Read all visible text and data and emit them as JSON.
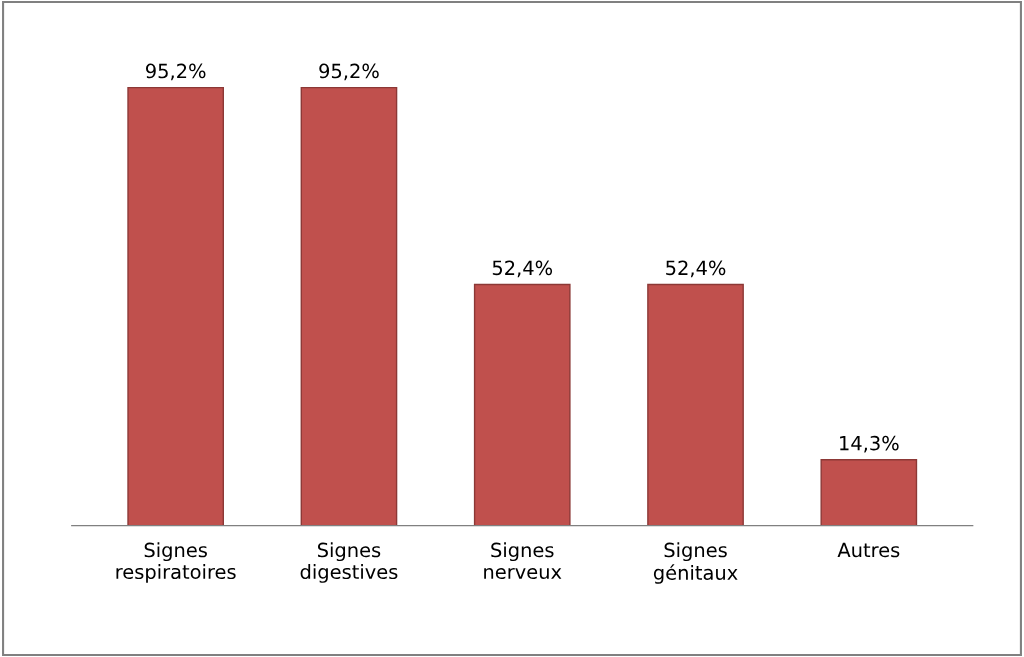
{
  "chart_data": {
    "type": "bar",
    "categories": [
      "Signes\nrespiratoires",
      "Signes\ndigestives",
      "Signes\nnerveux",
      "Signes\ngénitaux",
      "Autres"
    ],
    "values": [
      95.2,
      95.2,
      52.4,
      52.4,
      14.3
    ],
    "value_labels": [
      "95,2%",
      "95,2%",
      "52,4%",
      "52,4%",
      "14,3%"
    ],
    "color": "#c0504d",
    "grid": false,
    "legend": false
  }
}
